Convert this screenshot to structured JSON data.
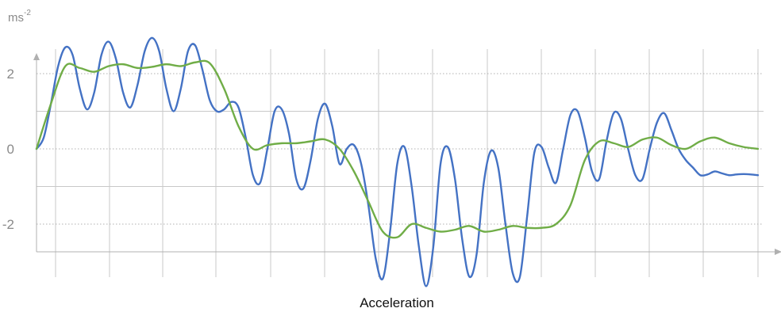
{
  "chart_data": {
    "type": "line",
    "title": "",
    "xlabel": "Acceleration",
    "ylabel": "ms",
    "ylabel_superscript": "-2",
    "ylim": [
      -2.8,
      2.8
    ],
    "xlim": [
      0,
      1
    ],
    "yticks": [
      -2,
      0,
      2
    ],
    "ytick_labels": [
      "-2",
      "0",
      "2"
    ],
    "grid": true,
    "legend": "none",
    "colors": {
      "series1": "#4472c4",
      "series2": "#70ad47",
      "grid_minor": "#c8c8c8",
      "grid_major": "#b0b0b0",
      "axis": "#b0b0b0"
    },
    "series": [
      {
        "x": [
          0,
          0.01,
          0.02,
          0.03,
          0.04,
          0.05,
          0.06,
          0.07,
          0.08,
          0.09,
          0.1,
          0.11,
          0.12,
          0.13,
          0.14,
          0.15,
          0.16,
          0.17,
          0.18,
          0.19,
          0.2,
          0.21,
          0.22,
          0.23,
          0.24,
          0.25,
          0.26,
          0.27,
          0.28,
          0.29,
          0.3,
          0.31,
          0.32,
          0.33,
          0.34,
          0.35,
          0.36,
          0.37,
          0.38,
          0.39,
          0.4,
          0.41,
          0.42,
          0.43,
          0.44,
          0.45,
          0.46,
          0.47,
          0.48,
          0.49,
          0.5,
          0.51,
          0.52,
          0.53,
          0.54,
          0.55,
          0.56,
          0.57,
          0.58,
          0.59,
          0.6,
          0.61,
          0.62,
          0.63,
          0.64,
          0.65,
          0.66,
          0.67,
          0.68,
          0.69,
          0.7,
          0.71,
          0.72,
          0.73,
          0.74,
          0.75,
          0.76,
          0.77,
          0.78,
          0.79,
          0.8,
          0.81,
          0.82,
          0.83,
          0.84,
          0.85,
          0.86,
          0.87,
          0.88,
          0.89,
          0.9,
          0.91,
          0.92,
          0.93,
          0.94,
          0.95,
          0.96,
          0.97,
          0.98,
          0.99,
          1.0
        ],
        "values": [
          0.0,
          0.3,
          1.2,
          2.2,
          2.7,
          2.5,
          1.6,
          1.05,
          1.5,
          2.5,
          2.85,
          2.4,
          1.5,
          1.1,
          1.7,
          2.6,
          2.95,
          2.6,
          1.6,
          1.0,
          1.6,
          2.6,
          2.75,
          2.1,
          1.3,
          1.0,
          1.05,
          1.25,
          1.1,
          0.3,
          -0.7,
          -0.9,
          0.0,
          1.0,
          1.05,
          0.4,
          -0.8,
          -1.05,
          -0.3,
          0.8,
          1.2,
          0.6,
          -0.4,
          0.0,
          0.1,
          -0.4,
          -1.5,
          -2.9,
          -3.45,
          -2.2,
          -0.4,
          0.05,
          -1.0,
          -2.6,
          -3.65,
          -2.6,
          -0.4,
          0.05,
          -0.8,
          -2.4,
          -3.4,
          -2.8,
          -0.9,
          -0.05,
          -0.5,
          -2.0,
          -3.3,
          -3.4,
          -1.8,
          -0.1,
          0.05,
          -0.5,
          -0.9,
          0.0,
          0.9,
          1.0,
          0.3,
          -0.6,
          -0.8,
          0.2,
          0.95,
          0.8,
          0.0,
          -0.7,
          -0.8,
          0.0,
          0.7,
          0.95,
          0.5,
          0.0,
          -0.3,
          -0.5,
          -0.7,
          -0.68,
          -0.6,
          -0.65,
          -0.7,
          -0.68,
          -0.67,
          -0.68,
          -0.7
        ]
      },
      {
        "x": [
          0,
          0.02,
          0.04,
          0.06,
          0.08,
          0.1,
          0.12,
          0.14,
          0.16,
          0.18,
          0.2,
          0.22,
          0.24,
          0.26,
          0.28,
          0.3,
          0.32,
          0.34,
          0.36,
          0.38,
          0.4,
          0.42,
          0.44,
          0.46,
          0.48,
          0.5,
          0.52,
          0.54,
          0.56,
          0.58,
          0.6,
          0.62,
          0.64,
          0.66,
          0.68,
          0.7,
          0.72,
          0.74,
          0.76,
          0.78,
          0.8,
          0.82,
          0.84,
          0.86,
          0.88,
          0.9,
          0.92,
          0.94,
          0.96,
          0.98,
          1.0
        ],
        "values": [
          0.0,
          1.2,
          2.2,
          2.15,
          2.05,
          2.2,
          2.25,
          2.15,
          2.18,
          2.25,
          2.2,
          2.3,
          2.28,
          1.6,
          0.6,
          0.0,
          0.1,
          0.15,
          0.15,
          0.2,
          0.25,
          0.0,
          -0.6,
          -1.4,
          -2.2,
          -2.35,
          -2.0,
          -2.1,
          -2.2,
          -2.15,
          -2.05,
          -2.2,
          -2.15,
          -2.05,
          -2.1,
          -2.1,
          -2.0,
          -1.5,
          -0.3,
          0.2,
          0.15,
          0.05,
          0.25,
          0.3,
          0.1,
          0.0,
          0.2,
          0.3,
          0.15,
          0.05,
          0.0
        ]
      }
    ]
  }
}
